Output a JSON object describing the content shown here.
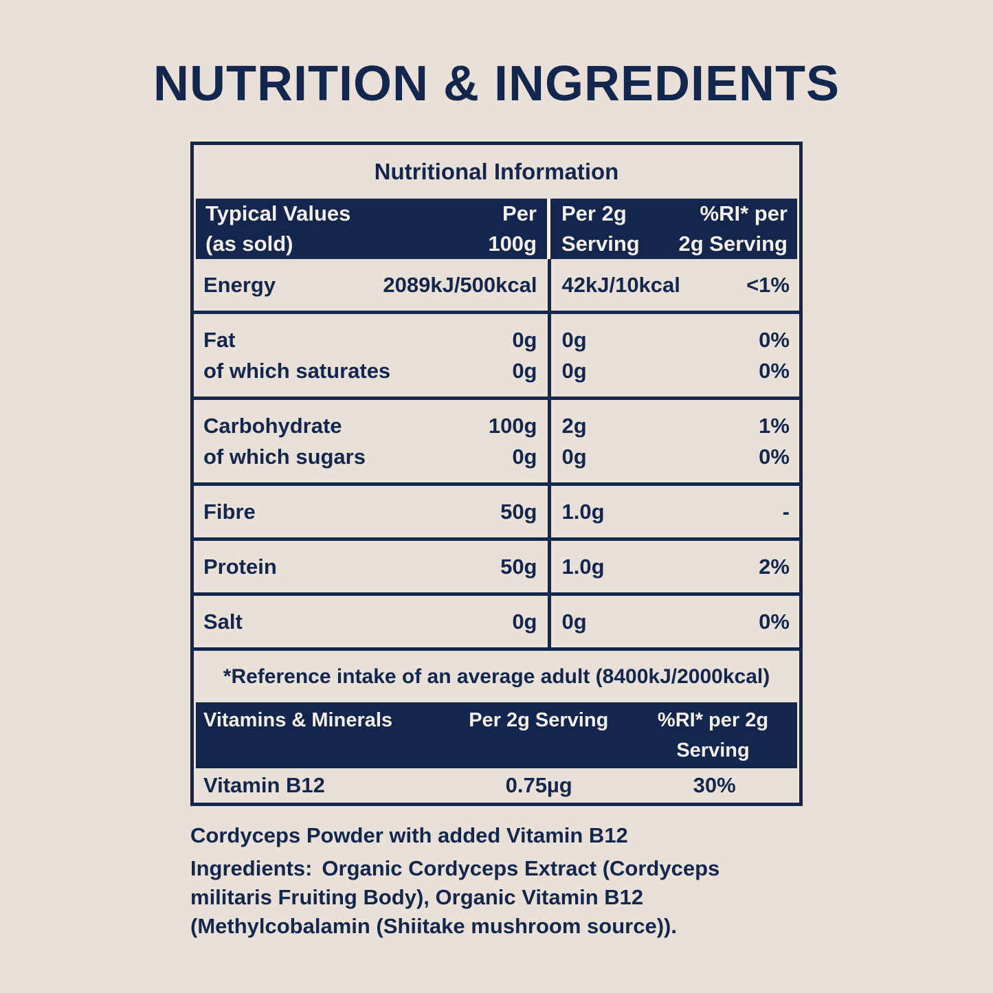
{
  "page_title": "NUTRITION & INGREDIENTS",
  "table": {
    "title": "Nutritional Information",
    "header": {
      "col1_line1": "Typical Values",
      "col1_line2": "(as sold)",
      "col2_line1": "Per",
      "col2_line2": "100g",
      "col3_line1": "Per 2g",
      "col3_line2": "Serving",
      "col4_line1": "%RI* per",
      "col4_line2": "2g Serving"
    },
    "rows": [
      {
        "name": "energy",
        "lines": [
          {
            "label": "Energy",
            "per100": "2089kJ/500kcal",
            "serving": "42kJ/10kcal",
            "ri": "<1%"
          }
        ]
      },
      {
        "name": "fat",
        "lines": [
          {
            "label": "Fat",
            "per100": "0g",
            "serving": "0g",
            "ri": "0%"
          },
          {
            "label": "of which saturates",
            "per100": "0g",
            "serving": "0g",
            "ri": "0%"
          }
        ]
      },
      {
        "name": "carbohydrate",
        "lines": [
          {
            "label": "Carbohydrate",
            "per100": "100g",
            "serving": "2g",
            "ri": "1%"
          },
          {
            "label": "of which sugars",
            "per100": "0g",
            "serving": "0g",
            "ri": "0%"
          }
        ]
      },
      {
        "name": "fibre",
        "lines": [
          {
            "label": "Fibre",
            "per100": "50g",
            "serving": "1.0g",
            "ri": "-"
          }
        ]
      },
      {
        "name": "protein",
        "lines": [
          {
            "label": "Protein",
            "per100": "50g",
            "serving": "1.0g",
            "ri": "2%"
          }
        ]
      },
      {
        "name": "salt",
        "lines": [
          {
            "label": "Salt",
            "per100": "0g",
            "serving": "0g",
            "ri": "0%"
          }
        ]
      }
    ],
    "reference_note": "*Reference intake of an average adult (8400kJ/2000kcal)",
    "vitamins": {
      "header": {
        "col1": "Vitamins & Minerals",
        "col2": "Per 2g Serving",
        "col3": "%RI* per 2g Serving"
      },
      "rows": [
        {
          "label": "Vitamin B12",
          "per_serving": "0.75µg",
          "ri": "30%"
        }
      ]
    }
  },
  "footer": {
    "product_line": "Cordyceps Powder with added Vitamin B12",
    "ingredients_label": "Ingredients:",
    "ingredients_text": "Organic Cordyceps Extract (Cordyceps militaris Fruiting Body), Organic Vitamin B12 (Methylcobalamin (Shiitake mushroom source))."
  },
  "colors": {
    "background": "#e9e1d8",
    "navy": "#13264d",
    "cream_text": "#f5f1ea"
  }
}
